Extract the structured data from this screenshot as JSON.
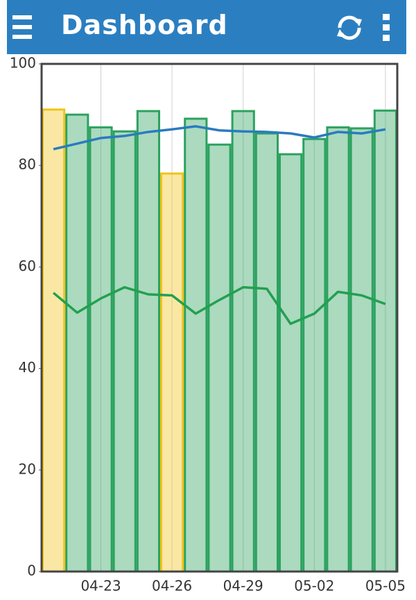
{
  "header": {
    "title": "Dashboard"
  },
  "chart_data": {
    "type": "combo",
    "categories": [
      null,
      null,
      "04-23",
      null,
      null,
      "04-26",
      null,
      null,
      "04-29",
      null,
      null,
      "05-02",
      null,
      null,
      "05-05"
    ],
    "ylim": [
      0,
      100
    ],
    "yticks": [
      0,
      20,
      40,
      60,
      80,
      100
    ],
    "grid": true,
    "series": [
      {
        "type": "bar",
        "values": [
          91,
          90,
          87.5,
          86.7,
          90.7,
          78.4,
          89.2,
          84.1,
          90.7,
          86.3,
          82.2,
          85.2,
          87.5,
          87.3,
          90.8
        ],
        "colors": [
          "#f0c419",
          "#2ca25f",
          "#2ca25f",
          "#2ca25f",
          "#2ca25f",
          "#f0c419",
          "#2ca25f",
          "#2ca25f",
          "#2ca25f",
          "#2ca25f",
          "#2ca25f",
          "#2ca25f",
          "#2ca25f",
          "#2ca25f",
          "#2ca25f"
        ]
      },
      {
        "type": "line",
        "color": "#2a7bbf",
        "values": [
          83.2,
          84.3,
          85.4,
          85.8,
          86.6,
          87.1,
          87.7,
          86.9,
          86.7,
          86.6,
          86.3,
          85.5,
          86.6,
          86.3,
          87.1
        ]
      },
      {
        "type": "line",
        "color": "#22a050",
        "values": [
          54.9,
          51.0,
          53.8,
          56.0,
          54.6,
          54.4,
          50.8,
          53.5,
          56.0,
          55.7,
          48.8,
          50.8,
          55.1,
          54.4,
          52.7
        ]
      }
    ]
  }
}
